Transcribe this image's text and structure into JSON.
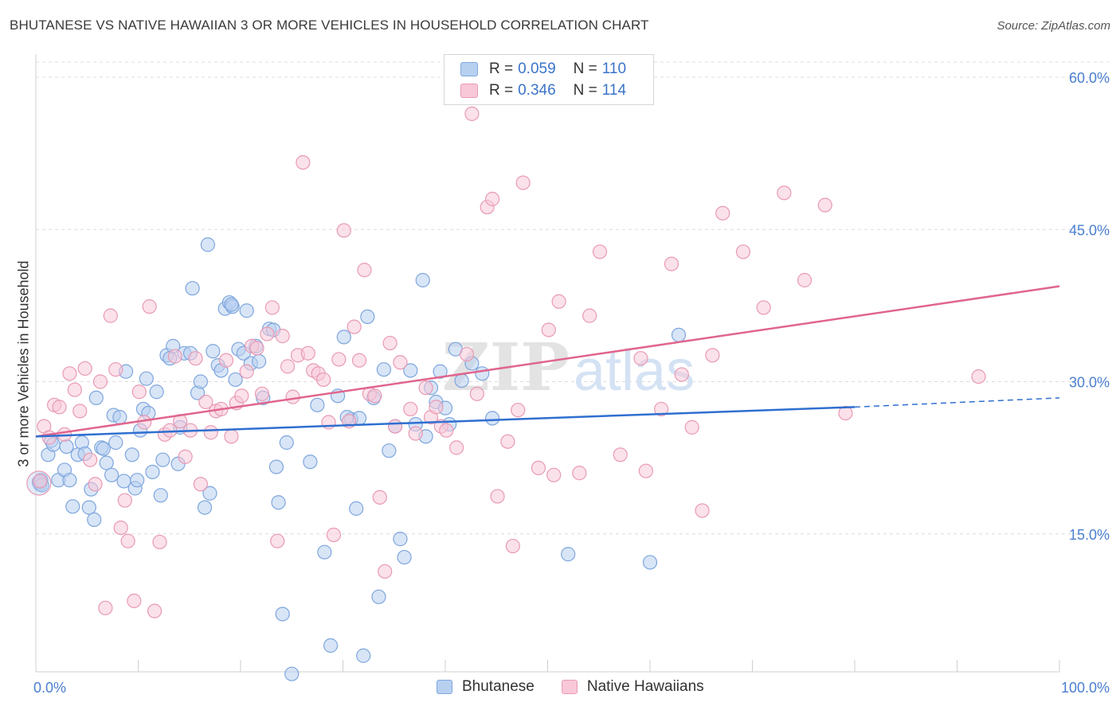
{
  "title": "BHUTANESE VS NATIVE HAWAIIAN 3 OR MORE VEHICLES IN HOUSEHOLD CORRELATION CHART",
  "source": "Source: ZipAtlas.com",
  "watermark": "ZIPatlas",
  "legend": {
    "rows": [
      {
        "r_label": "R =",
        "r_value": "0.059",
        "n_label": "N =",
        "n_value": "110"
      },
      {
        "r_label": "R =",
        "r_value": "0.346",
        "n_label": "N =",
        "n_value": "114"
      }
    ]
  },
  "colors": {
    "blue_fill": "#b8d0f0",
    "blue_stroke": "#7ea6dd",
    "blue_line": "#2f6fd0",
    "pink_fill": "#f8c8d8",
    "pink_stroke": "#e89ab4",
    "pink_line": "#e0658e",
    "axis_label": "#4a7fd0",
    "grid": "#dcdcdc"
  },
  "chart_data": {
    "type": "scatter",
    "title": "BHUTANESE VS NATIVE HAWAIIAN 3 OR MORE VEHICLES IN HOUSEHOLD CORRELATION CHART",
    "xlabel": "",
    "ylabel": "3 or more Vehicles in Household",
    "xlim": [
      0,
      100
    ],
    "ylim": [
      0,
      60
    ],
    "x_tick_labels": [
      "0.0%",
      "100.0%"
    ],
    "y_ticks": [
      15,
      30,
      45,
      60
    ],
    "y_tick_labels": [
      "15.0%",
      "30.0%",
      "45.0%",
      "60.0%"
    ],
    "grid": "horizontal dashed",
    "legend_position": "top-center",
    "series": [
      {
        "name": "Bhutanese",
        "trend": {
          "x0": 0,
          "y0": 24.6,
          "x1": 80,
          "y1": 27.5,
          "dashed_to": 100,
          "dashed_y": 28.4
        },
        "points": [
          [
            0.3,
            20.1
          ],
          [
            0.4,
            19.9
          ],
          [
            0.5,
            20.3
          ],
          [
            0.6,
            19.8
          ],
          [
            1.2,
            22.8
          ],
          [
            1.5,
            24.2
          ],
          [
            1.7,
            23.8
          ],
          [
            2.2,
            20.3
          ],
          [
            2.8,
            21.3
          ],
          [
            3.0,
            23.6
          ],
          [
            3.3,
            20.3
          ],
          [
            3.6,
            17.7
          ],
          [
            4.1,
            22.8
          ],
          [
            4.5,
            24.0
          ],
          [
            4.8,
            22.9
          ],
          [
            5.2,
            17.6
          ],
          [
            5.4,
            19.4
          ],
          [
            5.7,
            16.4
          ],
          [
            5.9,
            28.4
          ],
          [
            6.4,
            23.5
          ],
          [
            6.6,
            23.4
          ],
          [
            6.9,
            22.0
          ],
          [
            7.4,
            20.8
          ],
          [
            7.6,
            26.7
          ],
          [
            7.8,
            24.0
          ],
          [
            8.2,
            26.5
          ],
          [
            8.6,
            20.2
          ],
          [
            8.8,
            31.0
          ],
          [
            9.4,
            22.8
          ],
          [
            9.7,
            19.5
          ],
          [
            9.9,
            20.3
          ],
          [
            10.2,
            25.2
          ],
          [
            10.5,
            27.3
          ],
          [
            10.8,
            30.3
          ],
          [
            11.0,
            26.9
          ],
          [
            11.4,
            21.1
          ],
          [
            11.8,
            29.0
          ],
          [
            12.2,
            18.8
          ],
          [
            12.4,
            22.3
          ],
          [
            12.8,
            32.6
          ],
          [
            13.1,
            32.3
          ],
          [
            13.4,
            33.5
          ],
          [
            13.9,
            21.9
          ],
          [
            14.1,
            25.5
          ],
          [
            14.5,
            32.8
          ],
          [
            15.1,
            32.8
          ],
          [
            15.3,
            39.2
          ],
          [
            15.8,
            28.9
          ],
          [
            16.1,
            30.0
          ],
          [
            16.5,
            17.6
          ],
          [
            16.8,
            43.5
          ],
          [
            17.0,
            19.0
          ],
          [
            17.3,
            33.0
          ],
          [
            17.8,
            31.6
          ],
          [
            18.1,
            31.1
          ],
          [
            18.5,
            37.2
          ],
          [
            18.9,
            37.8
          ],
          [
            19.2,
            37.4
          ],
          [
            19.5,
            30.2
          ],
          [
            19.8,
            33.2
          ],
          [
            20.3,
            32.8
          ],
          [
            20.6,
            37.0
          ],
          [
            21.0,
            31.8
          ],
          [
            21.5,
            33.5
          ],
          [
            21.8,
            32.0
          ],
          [
            22.2,
            28.4
          ],
          [
            22.8,
            35.2
          ],
          [
            23.2,
            35.1
          ],
          [
            23.5,
            21.6
          ],
          [
            23.7,
            18.1
          ],
          [
            24.5,
            24.0
          ],
          [
            25.0,
            1.2
          ],
          [
            24.1,
            7.1
          ],
          [
            26.8,
            22.1
          ],
          [
            27.5,
            27.7
          ],
          [
            28.8,
            4.0
          ],
          [
            28.2,
            13.2
          ],
          [
            29.5,
            28.6
          ],
          [
            30.1,
            34.4
          ],
          [
            30.8,
            26.3
          ],
          [
            31.3,
            17.5
          ],
          [
            31.6,
            26.4
          ],
          [
            32.0,
            3.0
          ],
          [
            32.4,
            36.4
          ],
          [
            33.0,
            28.4
          ],
          [
            33.5,
            8.8
          ],
          [
            34.0,
            31.2
          ],
          [
            34.5,
            23.2
          ],
          [
            35.1,
            25.6
          ],
          [
            35.6,
            14.5
          ],
          [
            36.0,
            12.7
          ],
          [
            36.6,
            31.1
          ],
          [
            37.1,
            25.8
          ],
          [
            37.8,
            40.0
          ],
          [
            38.1,
            24.6
          ],
          [
            38.6,
            29.4
          ],
          [
            39.1,
            28.0
          ],
          [
            39.5,
            31.0
          ],
          [
            40.0,
            27.4
          ],
          [
            40.4,
            25.8
          ],
          [
            41.0,
            33.2
          ],
          [
            41.6,
            30.1
          ],
          [
            42.6,
            31.8
          ],
          [
            43.6,
            30.8
          ],
          [
            44.6,
            26.4
          ],
          [
            52.0,
            13.0
          ],
          [
            60.0,
            12.2
          ],
          [
            62.8,
            34.6
          ],
          [
            30.4,
            26.5
          ],
          [
            19.1,
            37.6
          ]
        ]
      },
      {
        "name": "Native Hawaiians",
        "trend": {
          "x0": 0,
          "y0": 24.6,
          "x1": 100,
          "y1": 39.4
        },
        "points": [
          [
            0.4,
            20.2
          ],
          [
            0.8,
            25.6
          ],
          [
            1.3,
            24.5
          ],
          [
            1.8,
            27.7
          ],
          [
            2.3,
            27.5
          ],
          [
            2.8,
            24.8
          ],
          [
            3.3,
            30.8
          ],
          [
            3.8,
            29.2
          ],
          [
            4.3,
            27.1
          ],
          [
            4.8,
            31.3
          ],
          [
            5.3,
            22.3
          ],
          [
            5.8,
            19.9
          ],
          [
            6.3,
            30.0
          ],
          [
            6.8,
            7.7
          ],
          [
            7.3,
            36.5
          ],
          [
            7.8,
            31.2
          ],
          [
            8.3,
            15.6
          ],
          [
            8.7,
            18.3
          ],
          [
            9.0,
            14.3
          ],
          [
            9.6,
            8.4
          ],
          [
            10.1,
            29.0
          ],
          [
            10.6,
            26.0
          ],
          [
            11.1,
            37.4
          ],
          [
            11.6,
            7.4
          ],
          [
            12.1,
            14.2
          ],
          [
            12.6,
            24.8
          ],
          [
            13.1,
            25.2
          ],
          [
            13.6,
            32.5
          ],
          [
            14.1,
            26.1
          ],
          [
            14.6,
            22.6
          ],
          [
            15.1,
            25.2
          ],
          [
            15.6,
            32.3
          ],
          [
            16.1,
            19.9
          ],
          [
            16.6,
            28.0
          ],
          [
            17.1,
            25.0
          ],
          [
            17.6,
            27.1
          ],
          [
            18.1,
            27.3
          ],
          [
            18.6,
            32.1
          ],
          [
            19.1,
            24.6
          ],
          [
            19.6,
            27.9
          ],
          [
            20.1,
            28.6
          ],
          [
            20.6,
            31.0
          ],
          [
            21.1,
            33.5
          ],
          [
            21.6,
            33.3
          ],
          [
            22.1,
            28.8
          ],
          [
            22.6,
            34.7
          ],
          [
            23.1,
            37.3
          ],
          [
            23.6,
            14.3
          ],
          [
            24.1,
            34.5
          ],
          [
            24.6,
            31.5
          ],
          [
            25.1,
            28.5
          ],
          [
            25.6,
            32.6
          ],
          [
            26.1,
            51.6
          ],
          [
            26.6,
            32.8
          ],
          [
            27.1,
            31.1
          ],
          [
            27.6,
            30.8
          ],
          [
            28.1,
            30.2
          ],
          [
            28.6,
            26.0
          ],
          [
            29.1,
            14.9
          ],
          [
            29.6,
            32.2
          ],
          [
            30.1,
            44.9
          ],
          [
            30.6,
            26.1
          ],
          [
            31.1,
            35.4
          ],
          [
            31.6,
            32.1
          ],
          [
            32.1,
            41.0
          ],
          [
            32.6,
            28.8
          ],
          [
            33.1,
            28.6
          ],
          [
            33.6,
            18.6
          ],
          [
            34.1,
            11.3
          ],
          [
            34.6,
            33.8
          ],
          [
            35.1,
            25.6
          ],
          [
            35.6,
            31.9
          ],
          [
            36.6,
            27.3
          ],
          [
            37.1,
            24.9
          ],
          [
            38.1,
            29.4
          ],
          [
            38.6,
            26.5
          ],
          [
            39.1,
            27.5
          ],
          [
            39.6,
            25.6
          ],
          [
            40.1,
            25.2
          ],
          [
            41.1,
            23.5
          ],
          [
            42.1,
            32.7
          ],
          [
            43.1,
            28.8
          ],
          [
            44.1,
            47.2
          ],
          [
            44.6,
            48.0
          ],
          [
            45.1,
            18.7
          ],
          [
            46.1,
            24.1
          ],
          [
            46.6,
            13.8
          ],
          [
            47.1,
            27.2
          ],
          [
            47.6,
            49.6
          ],
          [
            49.1,
            21.5
          ],
          [
            50.1,
            35.1
          ],
          [
            50.6,
            20.8
          ],
          [
            51.1,
            37.9
          ],
          [
            53.1,
            21.0
          ],
          [
            54.1,
            36.5
          ],
          [
            55.1,
            42.8
          ],
          [
            57.1,
            22.8
          ],
          [
            59.1,
            32.3
          ],
          [
            59.6,
            21.2
          ],
          [
            61.1,
            27.3
          ],
          [
            62.1,
            41.6
          ],
          [
            63.1,
            30.7
          ],
          [
            64.1,
            25.5
          ],
          [
            65.1,
            17.3
          ],
          [
            66.1,
            32.6
          ],
          [
            67.1,
            46.6
          ],
          [
            69.1,
            42.8
          ],
          [
            71.1,
            37.3
          ],
          [
            73.1,
            48.6
          ],
          [
            75.1,
            40.0
          ],
          [
            77.1,
            47.4
          ],
          [
            79.1,
            26.9
          ],
          [
            92.1,
            30.5
          ],
          [
            42.6,
            56.4
          ]
        ]
      }
    ]
  },
  "bottom_legend": [
    "Bhutanese",
    "Native Hawaiians"
  ]
}
